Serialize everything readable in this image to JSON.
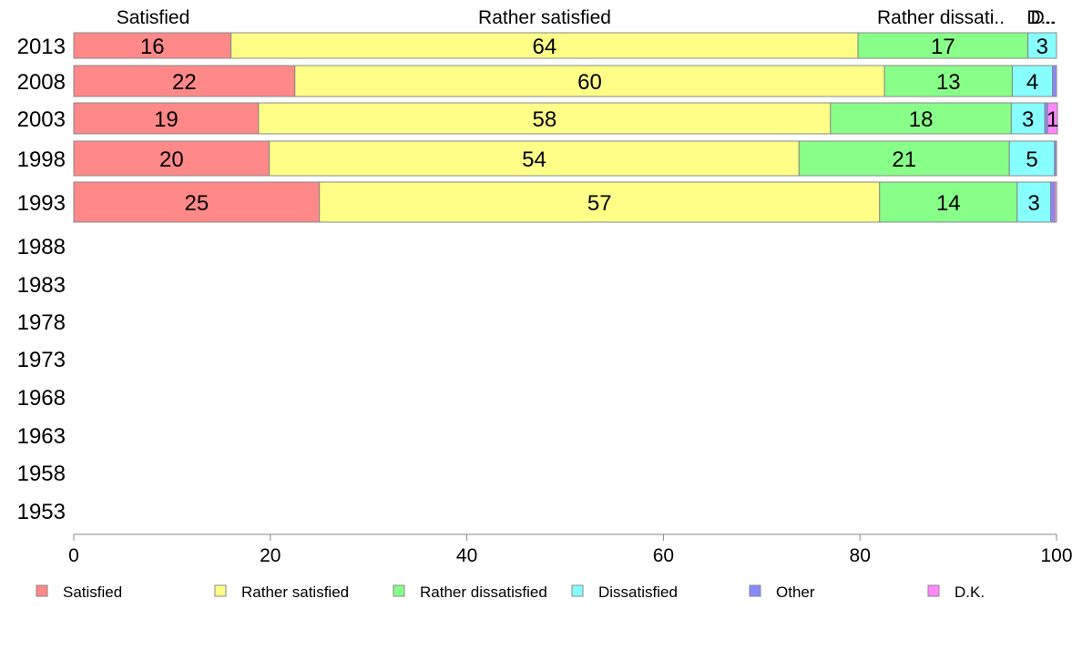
{
  "chart_data": {
    "type": "bar",
    "orientation": "horizontal",
    "stacked": true,
    "categories": [
      "2013",
      "2008",
      "2003",
      "1998",
      "1993",
      "1988",
      "1983",
      "1978",
      "1973",
      "1968",
      "1963",
      "1958",
      "1953"
    ],
    "series": [
      {
        "name": "Satisfied",
        "values": [
          16,
          22.5,
          18.8,
          19.9,
          25,
          null,
          null,
          null,
          null,
          null,
          null,
          null,
          null
        ]
      },
      {
        "name": "Rather satisfied",
        "values": [
          63.8,
          60,
          58.2,
          53.9,
          57,
          null,
          null,
          null,
          null,
          null,
          null,
          null,
          null
        ]
      },
      {
        "name": "Rather dissatisfied",
        "values": [
          17.3,
          13,
          18.4,
          21.4,
          14,
          null,
          null,
          null,
          null,
          null,
          null,
          null,
          null
        ]
      },
      {
        "name": "Dissatisfied",
        "values": [
          2.9,
          4.1,
          3.4,
          4.6,
          3.4,
          null,
          null,
          null,
          null,
          null,
          null,
          null,
          null
        ]
      },
      {
        "name": "Other",
        "values": [
          0,
          0.4,
          0.3,
          0.2,
          0.4,
          null,
          null,
          null,
          null,
          null,
          null,
          null,
          null
        ]
      },
      {
        "name": "D.K.",
        "values": [
          0,
          0,
          1,
          0,
          0.2,
          null,
          null,
          null,
          null,
          null,
          null,
          null,
          null
        ]
      }
    ],
    "data_labels": [
      [
        "16",
        "22",
        "19",
        "20",
        "25"
      ],
      [
        "64",
        "60",
        "58",
        "54",
        "57"
      ],
      [
        "17",
        "13",
        "18",
        "21",
        "14"
      ],
      [
        "3",
        "4",
        "3",
        "5",
        "3"
      ],
      [
        "",
        "",
        "",
        "",
        ""
      ],
      [
        "",
        "",
        "1",
        "",
        ""
      ]
    ],
    "top_labels": [
      "Satisfied",
      "Rather satisfied",
      "Rather dissati..",
      "D..",
      "D..."
    ],
    "xlim": [
      0,
      100
    ],
    "xticks": [
      "0",
      "20",
      "40",
      "60",
      "80",
      "100"
    ],
    "legend_position": "bottom",
    "grid": false,
    "colors": [
      "#ff8888",
      "#ffff88",
      "#88ff88",
      "#88ffff",
      "#8888ff",
      "#ff88ff"
    ]
  }
}
